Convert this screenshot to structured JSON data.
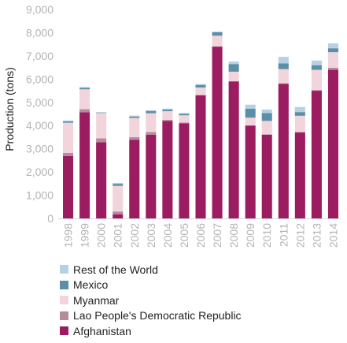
{
  "chart_data": {
    "type": "bar",
    "stacked": true,
    "ylabel": "Production (tons)",
    "ylim": [
      0,
      9000
    ],
    "yticks": [
      "0",
      "1,000",
      "2,000",
      "3,000",
      "4,000",
      "5,000",
      "6,000",
      "7,000",
      "8,000",
      "9,000"
    ],
    "grid": false,
    "legend_position": "bottom",
    "categories": [
      "1998",
      "1999",
      "2000",
      "2001",
      "2002",
      "2003",
      "2004",
      "2005",
      "2006",
      "2007",
      "2008",
      "2009",
      "2010",
      "2011",
      "2012",
      "2013",
      "2014"
    ],
    "series": [
      {
        "name": "Afghanistan",
        "color": "#9c1c62",
        "values": [
          2690,
          4570,
          3280,
          180,
          3390,
          3600,
          4200,
          4100,
          5300,
          7400,
          5900,
          4000,
          3600,
          5800,
          3700,
          5500,
          6400
        ]
      },
      {
        "name": "Lao People's Democratic Republic",
        "color": "#b68c9c",
        "values": [
          130,
          140,
          170,
          120,
          110,
          120,
          50,
          30,
          20,
          10,
          10,
          10,
          20,
          20,
          30,
          30,
          90
        ]
      },
      {
        "name": "Myanmar",
        "color": "#f1d4dc",
        "values": [
          1300,
          850,
          1090,
          1100,
          830,
          810,
          370,
          310,
          320,
          460,
          410,
          330,
          580,
          610,
          690,
          870,
          670
        ]
      },
      {
        "name": "Mexico",
        "color": "#5b8fa8",
        "values": [
          60,
          60,
          20,
          90,
          60,
          100,
          70,
          70,
          110,
          150,
          330,
          390,
          340,
          250,
          160,
          200,
          170
        ]
      },
      {
        "name": "Rest of the World",
        "color": "#b7d1e4",
        "values": [
          40,
          40,
          20,
          40,
          40,
          30,
          40,
          30,
          40,
          30,
          110,
          170,
          150,
          280,
          220,
          200,
          210
        ]
      }
    ]
  }
}
